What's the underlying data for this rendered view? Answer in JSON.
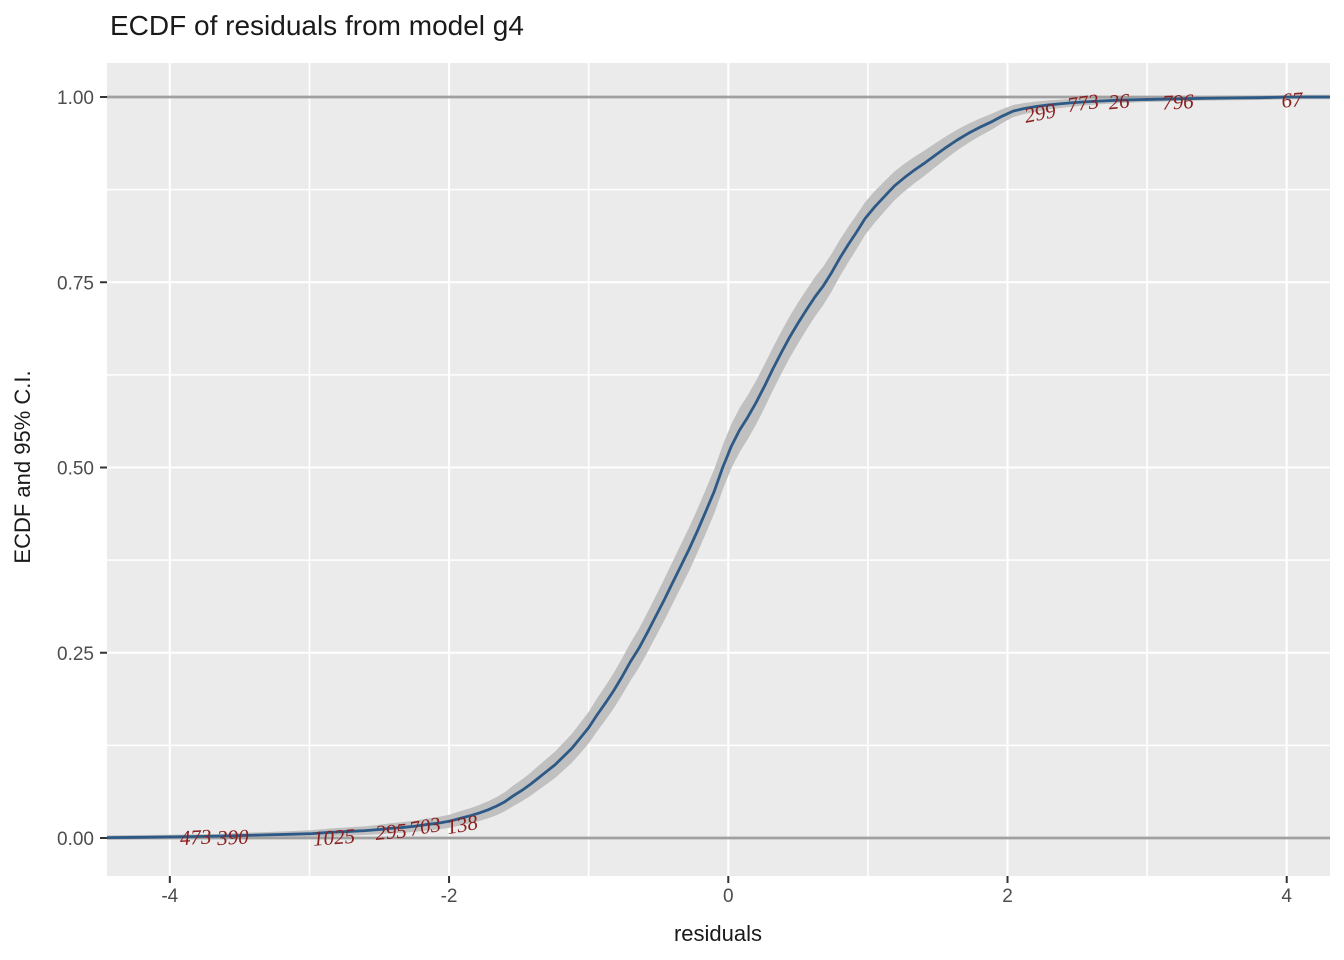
{
  "chart_data": {
    "type": "line",
    "title": "ECDF of residuals from model g4",
    "xlabel": "residuals",
    "ylabel": "ECDF and 95% C.I.",
    "x_ticks": [
      -4,
      -2,
      0,
      2,
      4
    ],
    "x_tick_labels": [
      "-4",
      "-2",
      "0",
      "2",
      "4"
    ],
    "y_ticks": [
      0,
      0.25,
      0.5,
      0.75,
      1
    ],
    "y_tick_labels": [
      "0.00",
      "0.25",
      "0.50",
      "0.75",
      "1.00"
    ],
    "x_minor_ticks": [
      -3,
      -1,
      1,
      3
    ],
    "y_minor_ticks": [
      0.125,
      0.375,
      0.625,
      0.875
    ],
    "xlim": [
      -4.45,
      4.31
    ],
    "ylim": [
      -0.05,
      1.046
    ],
    "grid": "white major and minor gridlines on gray panel",
    "legend": "none",
    "reference_lines_y": [
      0,
      1
    ],
    "ci": {
      "level": "95%",
      "halfwidth_at_mid": 0.03,
      "min_halfwidth": 0.003
    },
    "ecdf": [
      [
        -4.45,
        0.0005
      ],
      [
        -4.2,
        0.001
      ],
      [
        -4.0,
        0.0015
      ],
      [
        -3.81,
        0.002
      ],
      [
        -3.65,
        0.0025
      ],
      [
        -3.55,
        0.003
      ],
      [
        -3.35,
        0.004
      ],
      [
        -3.15,
        0.005
      ],
      [
        -2.98,
        0.006
      ],
      [
        -2.9,
        0.007
      ],
      [
        -2.82,
        0.008
      ],
      [
        -2.7,
        0.009
      ],
      [
        -2.6,
        0.01
      ],
      [
        -2.5,
        0.0115
      ],
      [
        -2.42,
        0.013
      ],
      [
        -2.32,
        0.0145
      ],
      [
        -2.24,
        0.016
      ],
      [
        -2.17,
        0.018
      ],
      [
        -2.08,
        0.02
      ],
      [
        -2.0,
        0.0225
      ],
      [
        -1.95,
        0.025
      ],
      [
        -1.91,
        0.027
      ],
      [
        -1.85,
        0.03
      ],
      [
        -1.78,
        0.034
      ],
      [
        -1.72,
        0.038
      ],
      [
        -1.66,
        0.043
      ],
      [
        -1.6,
        0.049
      ],
      [
        -1.54,
        0.057
      ],
      [
        -1.48,
        0.064
      ],
      [
        -1.42,
        0.072
      ],
      [
        -1.36,
        0.081
      ],
      [
        -1.3,
        0.09
      ],
      [
        -1.24,
        0.099
      ],
      [
        -1.18,
        0.11
      ],
      [
        -1.12,
        0.121
      ],
      [
        -1.06,
        0.135
      ],
      [
        -1.0,
        0.149
      ],
      [
        -0.94,
        0.166
      ],
      [
        -0.88,
        0.182
      ],
      [
        -0.82,
        0.199
      ],
      [
        -0.76,
        0.218
      ],
      [
        -0.7,
        0.238
      ],
      [
        -0.64,
        0.256
      ],
      [
        -0.58,
        0.277
      ],
      [
        -0.52,
        0.299
      ],
      [
        -0.46,
        0.321
      ],
      [
        -0.4,
        0.344
      ],
      [
        -0.34,
        0.367
      ],
      [
        -0.28,
        0.39
      ],
      [
        -0.22,
        0.415
      ],
      [
        -0.16,
        0.441
      ],
      [
        -0.1,
        0.468
      ],
      [
        -0.04,
        0.5
      ],
      [
        0.02,
        0.528
      ],
      [
        0.08,
        0.55
      ],
      [
        0.14,
        0.568
      ],
      [
        0.2,
        0.588
      ],
      [
        0.26,
        0.61
      ],
      [
        0.32,
        0.633
      ],
      [
        0.38,
        0.655
      ],
      [
        0.44,
        0.676
      ],
      [
        0.5,
        0.695
      ],
      [
        0.56,
        0.713
      ],
      [
        0.62,
        0.73
      ],
      [
        0.68,
        0.745
      ],
      [
        0.74,
        0.763
      ],
      [
        0.8,
        0.783
      ],
      [
        0.86,
        0.801
      ],
      [
        0.92,
        0.818
      ],
      [
        0.98,
        0.836
      ],
      [
        1.05,
        0.852
      ],
      [
        1.12,
        0.866
      ],
      [
        1.19,
        0.88
      ],
      [
        1.26,
        0.891
      ],
      [
        1.33,
        0.901
      ],
      [
        1.4,
        0.91
      ],
      [
        1.48,
        0.921
      ],
      [
        1.56,
        0.932
      ],
      [
        1.64,
        0.942
      ],
      [
        1.72,
        0.951
      ],
      [
        1.8,
        0.959
      ],
      [
        1.88,
        0.966
      ],
      [
        1.96,
        0.974
      ],
      [
        2.04,
        0.981
      ],
      [
        2.12,
        0.9845
      ],
      [
        2.2,
        0.987
      ],
      [
        2.28,
        0.989
      ],
      [
        2.36,
        0.9905
      ],
      [
        2.45,
        0.992
      ],
      [
        2.54,
        0.9933
      ],
      [
        2.65,
        0.9945
      ],
      [
        2.8,
        0.9957
      ],
      [
        2.95,
        0.9965
      ],
      [
        3.1,
        0.997
      ],
      [
        3.22,
        0.9976
      ],
      [
        3.4,
        0.9981
      ],
      [
        3.6,
        0.9986
      ],
      [
        3.8,
        0.999
      ],
      [
        4.04,
        1.0
      ],
      [
        4.31,
        1.0
      ]
    ],
    "labeled_points": [
      {
        "label": "473",
        "x": -3.81,
        "f": 0.002,
        "ax": -3.815,
        "af": 0.001,
        "rot": -3
      },
      {
        "label": "390",
        "x": -3.55,
        "f": 0.003,
        "ax": -3.548,
        "af": 0.001,
        "rot": -3
      },
      {
        "label": "1025",
        "x": -2.82,
        "f": 0.008,
        "ax": -2.824,
        "af": 0.001,
        "rot": -4
      },
      {
        "label": "295",
        "x": -2.42,
        "f": 0.013,
        "ax": -2.416,
        "af": 0.0085,
        "rot": -5
      },
      {
        "label": "703",
        "x": -2.17,
        "f": 0.018,
        "ax": -2.172,
        "af": 0.0155,
        "rot": -10
      },
      {
        "label": "138",
        "x": -1.91,
        "f": 0.027,
        "ax": -1.907,
        "af": 0.018,
        "rot": -10
      },
      {
        "label": "299",
        "x": 2.23,
        "f": 0.986,
        "ax": 2.233,
        "af": 0.9784,
        "rot": -11
      },
      {
        "label": "773",
        "x": 2.54,
        "f": 0.993,
        "ax": 2.541,
        "af": 0.9919,
        "rot": -8
      },
      {
        "label": "26",
        "x": 2.8,
        "f": 0.996,
        "ax": 2.799,
        "af": 0.994,
        "rot": -5
      },
      {
        "label": "796",
        "x": 3.22,
        "f": 0.998,
        "ax": 3.221,
        "af": 0.9933,
        "rot": -3
      },
      {
        "label": "67",
        "x": 4.04,
        "f": 1.0,
        "ax": 4.038,
        "af": 0.996,
        "rot": -4
      }
    ],
    "colors": {
      "line": "#2d5986",
      "band": "#c0c0c0",
      "panel": "#ebebeb",
      "grid": "#ffffff",
      "reference_line": "#a0a0a0",
      "outlier_labels": "#8b1e1e",
      "tick_text": "#4d4d4d",
      "tick_mark": "#333333",
      "title_text": "#1a1a1a"
    }
  }
}
